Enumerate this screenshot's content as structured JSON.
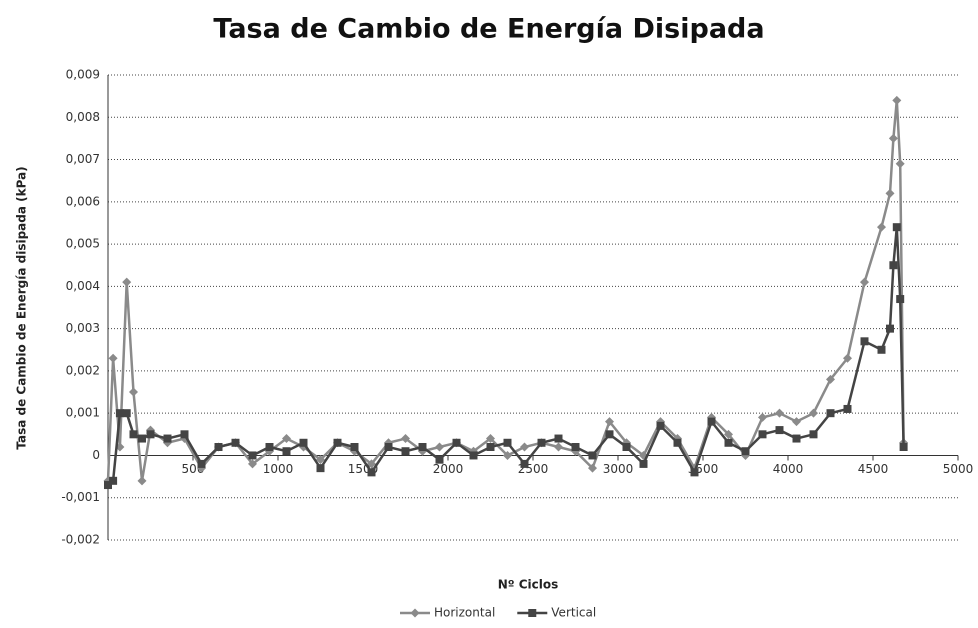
{
  "chart_data": {
    "type": "line",
    "title": "Tasa de Cambio de Energía Disipada",
    "x_label": "Nº Ciclos",
    "y_label": "Tasa de Cambio de Energía disipada (kPa)",
    "x": [
      0,
      30,
      70,
      110,
      150,
      200,
      250,
      350,
      450,
      550,
      650,
      750,
      850,
      950,
      1050,
      1150,
      1250,
      1350,
      1450,
      1550,
      1650,
      1750,
      1850,
      1950,
      2050,
      2150,
      2250,
      2350,
      2450,
      2550,
      2650,
      2750,
      2850,
      2950,
      3050,
      3150,
      3250,
      3350,
      3450,
      3550,
      3650,
      3750,
      3850,
      3950,
      4050,
      4150,
      4250,
      4350,
      4450,
      4550,
      4600,
      4620,
      4640,
      4660,
      4680
    ],
    "series": [
      {
        "name": "Horizontal",
        "color": "#8a8a8a",
        "marker": "diamond",
        "values": [
          -0.0006,
          0.0023,
          0.0002,
          0.0041,
          0.0015,
          -0.0006,
          0.0006,
          0.0003,
          0.0004,
          -0.0003,
          0.0002,
          0.0003,
          -0.0002,
          0.0001,
          0.0004,
          0.0002,
          -0.0001,
          0.0003,
          0.0001,
          -0.0002,
          0.0003,
          0.0004,
          0.0001,
          0.0002,
          0.0003,
          0.0001,
          0.0004,
          0,
          0.0002,
          0.0003,
          0.0002,
          0.0001,
          -0.0003,
          0.0008,
          0.0003,
          0,
          0.0008,
          0.0004,
          -0.0003,
          0.0009,
          0.0005,
          0,
          0.0009,
          0.001,
          0.0008,
          0.001,
          0.0018,
          0.0023,
          0.0041,
          0.0054,
          0.0062,
          0.0075,
          0.0084,
          0.0069,
          0.0003
        ]
      },
      {
        "name": "Vertical",
        "color": "#444444",
        "marker": "square",
        "values": [
          -0.0007,
          -0.0006,
          0.001,
          0.001,
          0.0005,
          0.0004,
          0.0005,
          0.0004,
          0.0005,
          -0.0002,
          0.0002,
          0.0003,
          0,
          0.0002,
          0.0001,
          0.0003,
          -0.0003,
          0.0003,
          0.0002,
          -0.0004,
          0.0002,
          0.0001,
          0.0002,
          -0.0001,
          0.0003,
          0,
          0.0002,
          0.0003,
          -0.0002,
          0.0003,
          0.0004,
          0.0002,
          0,
          0.0005,
          0.0002,
          -0.0002,
          0.0007,
          0.0003,
          -0.0004,
          0.0008,
          0.0003,
          0.0001,
          0.0005,
          0.0006,
          0.0004,
          0.0005,
          0.001,
          0.0011,
          0.0027,
          0.0025,
          0.003,
          0.0045,
          0.0054,
          0.0037,
          0.0002
        ]
      }
    ],
    "xlim": [
      0,
      5000
    ],
    "xticks": [
      500,
      1000,
      1500,
      2000,
      2500,
      3000,
      3500,
      4000,
      4500,
      5000
    ],
    "ylim": [
      -0.002,
      0.009
    ],
    "yticks": [
      {
        "value": -0.002,
        "label": "-0,002"
      },
      {
        "value": -0.001,
        "label": "-0,001"
      },
      0,
      {
        "value": 0.001,
        "label": "0,001"
      },
      {
        "value": 0.002,
        "label": "0,002"
      },
      {
        "value": 0.003,
        "label": "0,003"
      },
      {
        "value": 0.004,
        "label": "0,004"
      },
      {
        "value": 0.005,
        "label": "0,005"
      },
      {
        "value": 0.006,
        "label": "0,006"
      },
      {
        "value": 0.007,
        "label": "0,007"
      },
      {
        "value": 0.008,
        "label": "0,008"
      },
      {
        "value": 0.009,
        "label": "0,009"
      }
    ],
    "grid": true,
    "legend": "bottom"
  }
}
